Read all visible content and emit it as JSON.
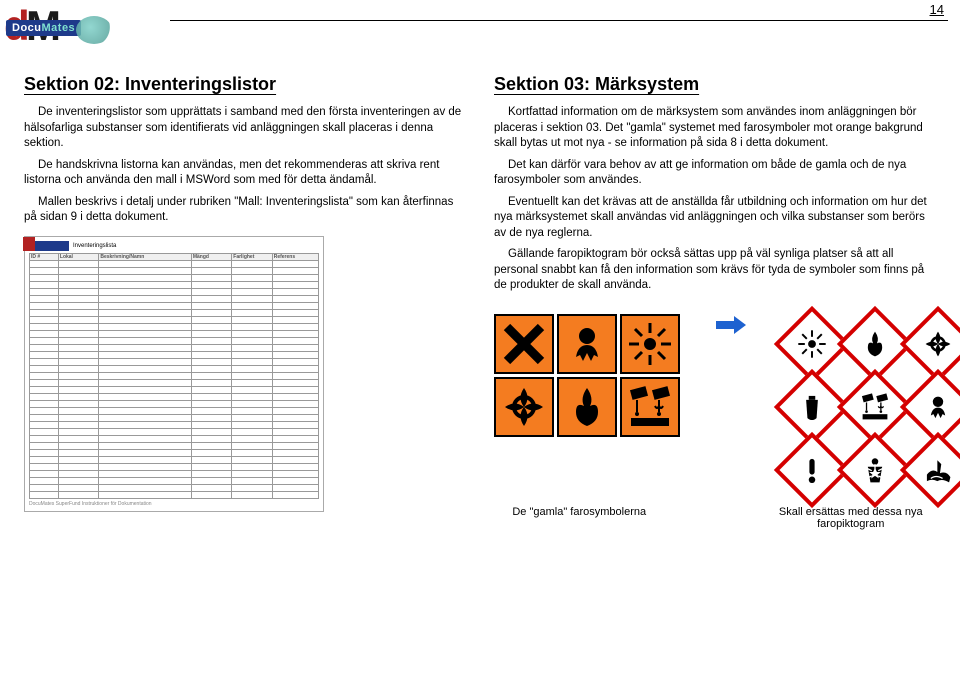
{
  "page_number": "14",
  "logo": {
    "d": "d",
    "m": "M",
    "word_docu": "Docu",
    "word_mates": "Mates"
  },
  "left": {
    "title": "Sektion 02: Inventeringslistor",
    "p1": "De inventeringslistor som upprättats i samband med den första inventeringen av de hälsofarliga substanser som identifierats vid anläggningen skall placeras i denna sektion.",
    "p2": "De handskrivna listorna kan användas, men det rekommenderas att skriva rent listorna och använda den mall i MSWord som med för detta ändamål.",
    "p3": "Mallen beskrivs i detalj under rubriken \"Mall: Inventeringslista\" som kan återfinnas på sidan 9 i detta dokument.",
    "form_title": "Inventeringslista",
    "form_cols": [
      "ID #",
      "Lokal",
      "Beskrivning/Namn",
      "Mängd",
      "Farlighet",
      "Referens"
    ],
    "form_footer": "DocuMates SuperFund Instruktioner för Dokumentation"
  },
  "right": {
    "title": "Sektion 03: Märksystem",
    "p1": "Kortfattad information om de märksystem som användes inom anläggningen bör placeras i sektion 03. Det \"gamla\" systemet med farosymboler mot orange bakgrund skall bytas ut mot nya - se information på sida 8 i detta dokument.",
    "p2": "Det kan därför vara behov av att ge information om både de gamla och de nya farosymboler som användes.",
    "p3": "Eventuellt kan det krävas att de anställda får utbildning och information om hur det nya märksystemet skall användas vid anläggningen och vilka substanser som berörs av de nya reglerna.",
    "p4": "Gällande faropiktogram bör också sättas upp på väl synliga platser så att all personal snabbt kan få den information som krävs för tyda de symboler som finns på de produkter de skall använda."
  },
  "captions": {
    "left": "De \"gamla\" farosymbolerna",
    "right": "Skall ersättas med dessa nya faropiktogram"
  },
  "colors": {
    "old_bg": "#f47c20",
    "old_border": "#000000",
    "new_border": "#d40000",
    "arrow": "#1e62d0"
  },
  "old_hazards": [
    "irritant",
    "toxic",
    "explosive",
    "oxidizing",
    "flammable",
    "corrosive"
  ],
  "new_hazards": [
    "explosive",
    "flammable",
    "oxidizing",
    "gas",
    "corrosive",
    "toxic",
    "exclaim",
    "health",
    "environment"
  ]
}
